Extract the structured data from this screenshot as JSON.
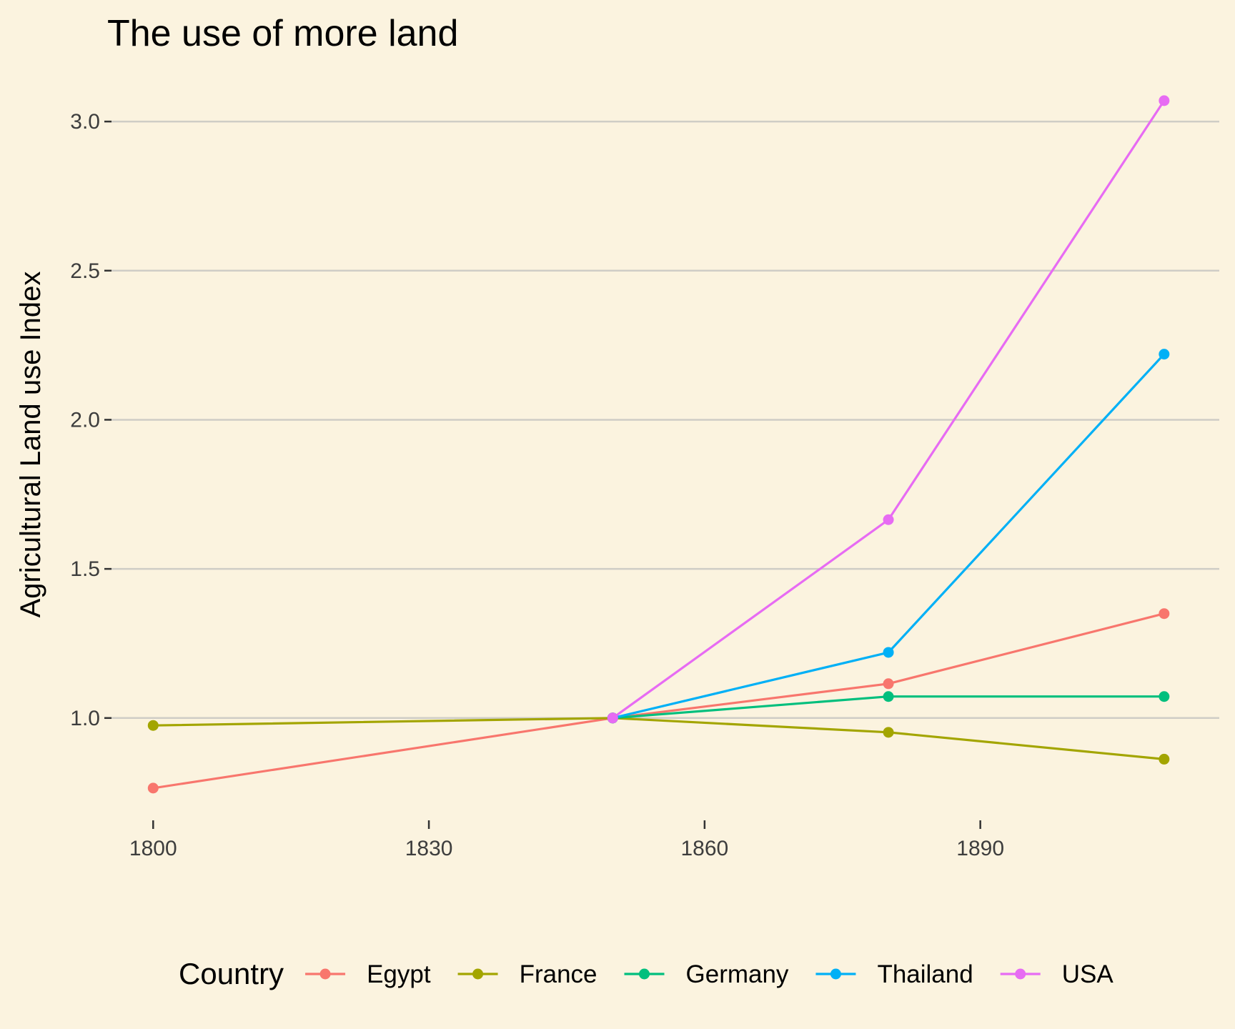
{
  "chart_data": {
    "type": "line",
    "title": "The use of more land",
    "xlabel": "",
    "ylabel": "Agricultural Land use Index",
    "x_ticks": [
      1800,
      1830,
      1860,
      1890
    ],
    "x_tick_labels": [
      "1800",
      "1830",
      "1860",
      "1890"
    ],
    "y_ticks": [
      1.0,
      1.5,
      2.0,
      2.5,
      3.0
    ],
    "y_tick_labels": [
      "1.0",
      "1.5",
      "2.0",
      "2.5",
      "3.0"
    ],
    "xlim": [
      1795,
      1916
    ],
    "ylim": [
      0.7,
      3.12
    ],
    "grid": "horizontal major lines only",
    "legend": {
      "title": "Country",
      "position": "bottom"
    },
    "series": [
      {
        "name": "Egypt",
        "color": "#f8766d",
        "points": [
          [
            1800,
            0.765
          ],
          [
            1850,
            1.0
          ],
          [
            1880,
            1.115
          ],
          [
            1910,
            1.35
          ]
        ]
      },
      {
        "name": "France",
        "color": "#a3a500",
        "points": [
          [
            1800,
            0.975
          ],
          [
            1850,
            1.0
          ],
          [
            1880,
            0.952
          ],
          [
            1910,
            0.862
          ]
        ]
      },
      {
        "name": "Germany",
        "color": "#00bf7d",
        "points": [
          [
            1850,
            1.0
          ],
          [
            1880,
            1.072
          ],
          [
            1910,
            1.072
          ]
        ]
      },
      {
        "name": "Thailand",
        "color": "#00b0f6",
        "points": [
          [
            1850,
            1.0
          ],
          [
            1880,
            1.22
          ],
          [
            1910,
            2.22
          ]
        ]
      },
      {
        "name": "USA",
        "color": "#e76bf3",
        "points": [
          [
            1850,
            1.0
          ],
          [
            1880,
            1.665
          ],
          [
            1910,
            3.07
          ]
        ]
      }
    ]
  }
}
